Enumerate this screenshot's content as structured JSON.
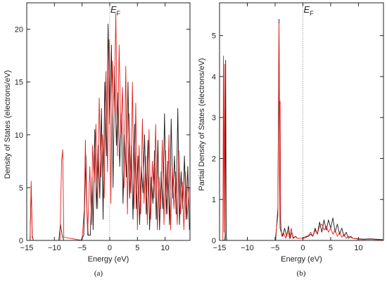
{
  "chart_data": [
    {
      "type": "line",
      "caption": "(a)",
      "xlabel": "Energy (eV)",
      "ylabel": "Density of States (electrons/eV)",
      "fermi_label": "E",
      "fermi_sub": "F",
      "fermi_x": 0,
      "xlim": [
        -15,
        14.5
      ],
      "ylim": [
        0,
        22.5
      ],
      "xticks": [
        -15,
        -10,
        -5,
        0,
        5,
        10
      ],
      "yticks": [
        0,
        5,
        10,
        15,
        20
      ],
      "grid": false,
      "series": [
        {
          "color": "#1a1a1a",
          "x": [
            -15,
            -14.4,
            -14.2,
            -14.0,
            -13.8,
            -13.6,
            -9.2,
            -8.9,
            -8.6,
            -8.3,
            -5.2,
            -4.7,
            -4.5,
            -4.3,
            -4.1,
            -3.9,
            -3.5,
            -3.2,
            -3.0,
            -2.7,
            -2.4,
            -2.1,
            -1.8,
            -1.5,
            -1.2,
            -0.9,
            -0.6,
            -0.3,
            0.0,
            0.3,
            0.6,
            0.9,
            1.2,
            1.5,
            1.8,
            2.1,
            2.4,
            2.7,
            3.0,
            3.3,
            3.6,
            3.9,
            4.2,
            4.5,
            4.8,
            5.1,
            5.4,
            5.7,
            6.0,
            6.3,
            6.6,
            6.9,
            7.2,
            7.5,
            7.8,
            8.1,
            8.4,
            8.7,
            9.0,
            9.3,
            9.6,
            9.9,
            10.2,
            10.5,
            10.8,
            11.1,
            11.4,
            11.7,
            12.0,
            12.3,
            12.6,
            12.9,
            13.2,
            13.5,
            13.8,
            14.1,
            14.4
          ],
          "y": [
            0,
            0,
            5.2,
            0.3,
            0,
            0,
            0,
            1.5,
            0.5,
            0,
            0,
            0.5,
            4.0,
            8.0,
            2.5,
            0.5,
            0.5,
            6.0,
            1.0,
            10.5,
            3.0,
            9.0,
            4.0,
            12.5,
            2.0,
            15.0,
            8.0,
            20.5,
            11.0,
            18.5,
            5.0,
            16.5,
            9.0,
            14.0,
            7.0,
            12.0,
            3.5,
            10.0,
            6.0,
            15.0,
            4.0,
            9.0,
            2.0,
            11.0,
            3.0,
            8.0,
            1.5,
            7.0,
            4.5,
            10.0,
            2.5,
            9.5,
            1.0,
            6.0,
            3.5,
            8.5,
            2.0,
            9.5,
            1.0,
            6.5,
            3.0,
            12.0,
            2.5,
            7.5,
            1.5,
            11.5,
            4.0,
            8.0,
            2.5,
            12.5,
            1.5,
            6.5,
            3.0,
            8.0,
            2.0,
            7.0,
            1.0
          ]
        },
        {
          "color": "#e4201c",
          "x": [
            -15,
            -14.4,
            -14.2,
            -14.0,
            -13.8,
            -9.5,
            -9.0,
            -8.7,
            -8.5,
            -8.3,
            -5.0,
            -4.6,
            -4.4,
            -4.2,
            -4.0,
            -3.6,
            -3.3,
            -3.1,
            -2.8,
            -2.5,
            -2.2,
            -1.9,
            -1.6,
            -1.3,
            -1.0,
            -0.7,
            -0.4,
            -0.1,
            0.2,
            0.5,
            0.8,
            1.1,
            1.4,
            1.7,
            2.0,
            2.3,
            2.6,
            2.9,
            3.2,
            3.5,
            3.8,
            4.1,
            4.4,
            4.7,
            5.0,
            5.3,
            5.6,
            5.9,
            6.2,
            6.5,
            6.8,
            7.1,
            7.4,
            7.7,
            8.0,
            8.3,
            8.6,
            8.9,
            9.2,
            9.5,
            9.8,
            10.1,
            10.4,
            10.7,
            11.0,
            11.3,
            11.6,
            11.9,
            12.2,
            12.5,
            12.8,
            13.1,
            13.4,
            13.7,
            14.0,
            14.3
          ],
          "y": [
            0,
            0,
            5.6,
            0.5,
            0,
            0,
            0,
            7.5,
            8.6,
            0.3,
            0,
            3.0,
            9.5,
            4.0,
            0.5,
            7.0,
            1.5,
            9.0,
            5.5,
            11.0,
            3.0,
            13.5,
            6.0,
            10.0,
            4.0,
            16.0,
            6.5,
            19.0,
            3.5,
            17.0,
            12.0,
            21.5,
            8.0,
            18.5,
            10.0,
            14.5,
            5.0,
            16.5,
            2.5,
            12.0,
            4.5,
            15.0,
            3.0,
            13.0,
            1.0,
            9.0,
            2.5,
            11.5,
            3.5,
            8.0,
            1.5,
            10.5,
            2.0,
            7.5,
            4.0,
            11.0,
            1.0,
            6.0,
            3.0,
            9.5,
            1.5,
            8.5,
            2.5,
            10.0,
            1.0,
            7.0,
            3.0,
            6.5,
            1.5,
            8.5,
            2.5,
            5.5,
            1.0,
            6.5,
            2.0,
            5.0
          ]
        }
      ]
    },
    {
      "type": "line",
      "caption": "(b)",
      "xlabel": "Energy (eV)",
      "ylabel": "Partial Density of States (electrons/eV)",
      "fermi_label": "E",
      "fermi_sub": "F",
      "fermi_x": 0,
      "xlim": [
        -15,
        14.5
      ],
      "ylim": [
        0,
        5.8
      ],
      "xticks": [
        -15,
        -10,
        -5,
        0,
        5,
        10
      ],
      "yticks": [
        0,
        1,
        2,
        3,
        4,
        5
      ],
      "grid": false,
      "series": [
        {
          "color": "#1a1a1a",
          "x": [
            -15,
            -14.2,
            -14.0,
            -13.9,
            -13.8,
            -13.7,
            -4.9,
            -4.5,
            -4.3,
            -4.2,
            -4.1,
            -3.9,
            -3.6,
            -3.3,
            -2.9,
            -2.6,
            -2.3,
            -2.0,
            -1.7,
            -1.3,
            -1.0,
            -0.6,
            -0.2,
            0.2,
            0.6,
            1.0,
            1.4,
            1.8,
            2.2,
            2.6,
            3.0,
            3.4,
            3.8,
            4.2,
            4.6,
            5.0,
            5.4,
            5.8,
            6.2,
            6.6,
            7.0,
            7.4,
            7.8,
            8.2,
            8.6,
            9.0,
            10.0,
            11.0,
            12.0,
            13.0,
            14.4
          ],
          "y": [
            0,
            0,
            0.05,
            4.4,
            0.1,
            0,
            0,
            0.8,
            5.4,
            2.0,
            0.3,
            0.2,
            0.1,
            0.3,
            0.1,
            0.35,
            0.05,
            0.2,
            0.05,
            0.1,
            0.05,
            0.05,
            0.05,
            0.05,
            0.08,
            0.1,
            0.15,
            0.1,
            0.3,
            0.15,
            0.45,
            0.2,
            0.5,
            0.25,
            0.5,
            0.3,
            0.55,
            0.2,
            0.4,
            0.15,
            0.3,
            0.1,
            0.2,
            0.05,
            0.1,
            0.05,
            0.04,
            0.03,
            0.04,
            0.03,
            0.02
          ]
        },
        {
          "color": "#e4201c",
          "x": [
            -15,
            -14.4,
            -14.3,
            -14.2,
            -14.1,
            -14.0,
            -13.9,
            -5.0,
            -4.5,
            -4.3,
            -4.2,
            -4.1,
            -4.0,
            -3.8,
            -3.5,
            -3.1,
            -2.7,
            -2.4,
            -2.1,
            -1.8,
            -1.4,
            -1.0,
            -0.6,
            -0.2,
            0.2,
            0.6,
            1.0,
            1.4,
            1.8,
            2.2,
            2.6,
            3.0,
            3.4,
            3.8,
            4.2,
            4.6,
            5.0,
            5.4,
            5.8,
            6.2,
            6.6,
            7.0,
            7.4,
            7.8,
            8.2,
            9.0,
            10.0,
            11.0,
            12.0,
            13.0,
            14.4
          ],
          "y": [
            0,
            0,
            4.5,
            0.2,
            4.3,
            0.3,
            0,
            0,
            0.6,
            5.3,
            3.0,
            3.4,
            0.5,
            0.1,
            0.2,
            0.05,
            0.25,
            0.05,
            0.3,
            0.05,
            0.1,
            0.05,
            0.05,
            0.05,
            0.08,
            0.1,
            0.12,
            0.2,
            0.1,
            0.25,
            0.15,
            0.35,
            0.4,
            0.25,
            0.35,
            0.2,
            0.3,
            0.15,
            0.25,
            0.1,
            0.2,
            0.08,
            0.15,
            0.05,
            0.1,
            0.05,
            0.03,
            0.02,
            0.03,
            0.02,
            0.01
          ]
        }
      ]
    }
  ]
}
